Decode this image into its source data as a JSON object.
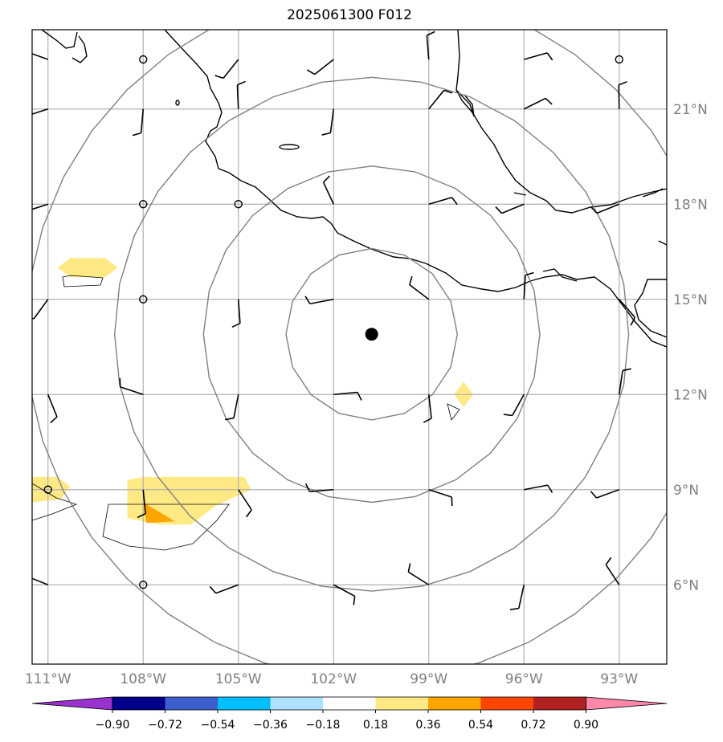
{
  "title": "2025061300 F012",
  "map": {
    "lon_range": [
      -111.5,
      -91.5
    ],
    "lat_range": [
      3.5,
      23.5
    ],
    "lon_ticks": [
      {
        "value": -111,
        "label": "111°W"
      },
      {
        "value": -108,
        "label": "108°W"
      },
      {
        "value": -105,
        "label": "105°W"
      },
      {
        "value": -102,
        "label": "102°W"
      },
      {
        "value": -99,
        "label": "99°W"
      },
      {
        "value": -96,
        "label": "96°W"
      },
      {
        "value": -93,
        "label": "93°W"
      }
    ],
    "lat_ticks": [
      {
        "value": 6,
        "label": "6°N"
      },
      {
        "value": 9,
        "label": "9°N"
      },
      {
        "value": 12,
        "label": "12°N"
      },
      {
        "value": 15,
        "label": "15°N"
      },
      {
        "value": 18,
        "label": "18°N"
      },
      {
        "value": 21,
        "label": "21°N"
      }
    ],
    "gridline_color": "#b0b0b0",
    "coastline_color": "#000000",
    "range_ring_color": "#808080",
    "storm_center": {
      "lon": -100.8,
      "lat": 13.9
    },
    "range_rings_deg": [
      2.7,
      5.3,
      8.1,
      10.9
    ],
    "wind_barb_grid": {
      "lons": [
        -111,
        -108,
        -105,
        -102,
        -99,
        -96,
        -93
      ],
      "lats": [
        6,
        9,
        12,
        15,
        18,
        21,
        23
      ]
    },
    "shaded_regions": [
      {
        "level": "0.18-0.36",
        "color": "#ffe985",
        "points": [
          [
            -110.7,
            16.0
          ],
          [
            -110.3,
            16.3
          ],
          [
            -109.2,
            16.3
          ],
          [
            -108.8,
            16.0
          ],
          [
            -109.2,
            15.7
          ],
          [
            -110.3,
            15.7
          ]
        ]
      },
      {
        "level": "0.18-0.36",
        "color": "#ffe985",
        "points": [
          [
            -111.5,
            9.4
          ],
          [
            -110.7,
            9.4
          ],
          [
            -110.3,
            9.1
          ],
          [
            -110.6,
            8.7
          ],
          [
            -111.5,
            8.6
          ]
        ]
      },
      {
        "level": "0.18-0.36",
        "color": "#ffe985",
        "points": [
          [
            -108.5,
            9.3
          ],
          [
            -108.0,
            9.4
          ],
          [
            -104.8,
            9.4
          ],
          [
            -104.6,
            9.0
          ],
          [
            -105.7,
            8.5
          ],
          [
            -106.5,
            7.9
          ],
          [
            -107.5,
            7.9
          ],
          [
            -108.5,
            8.1
          ]
        ]
      },
      {
        "level": "0.36-0.54",
        "color": "#ffa500",
        "points": [
          [
            -108.0,
            8.6
          ],
          [
            -107.0,
            8.0
          ],
          [
            -107.9,
            7.95
          ]
        ]
      },
      {
        "level": "0.18-0.36",
        "color": "#ffe985",
        "points": [
          [
            -98.2,
            12.0
          ],
          [
            -97.9,
            12.4
          ],
          [
            -97.6,
            12.0
          ],
          [
            -97.9,
            11.6
          ]
        ]
      }
    ]
  },
  "colorbar": {
    "levels": [
      -0.9,
      -0.72,
      -0.54,
      -0.36,
      -0.18,
      0.18,
      0.36,
      0.54,
      0.72,
      0.9
    ],
    "labels": [
      "−0.90",
      "−0.72",
      "−0.54",
      "−0.36",
      "−0.18",
      "0.18",
      "0.36",
      "0.54",
      "0.72",
      "0.90"
    ],
    "colors": [
      "#9932cc",
      "#00008b",
      "#3c5ecf",
      "#00bfff",
      "#b0e0ff",
      "#ffffff",
      "#ffe985",
      "#ffa500",
      "#ff4500",
      "#b22222",
      "#ff88aa"
    ],
    "extend": "both"
  }
}
